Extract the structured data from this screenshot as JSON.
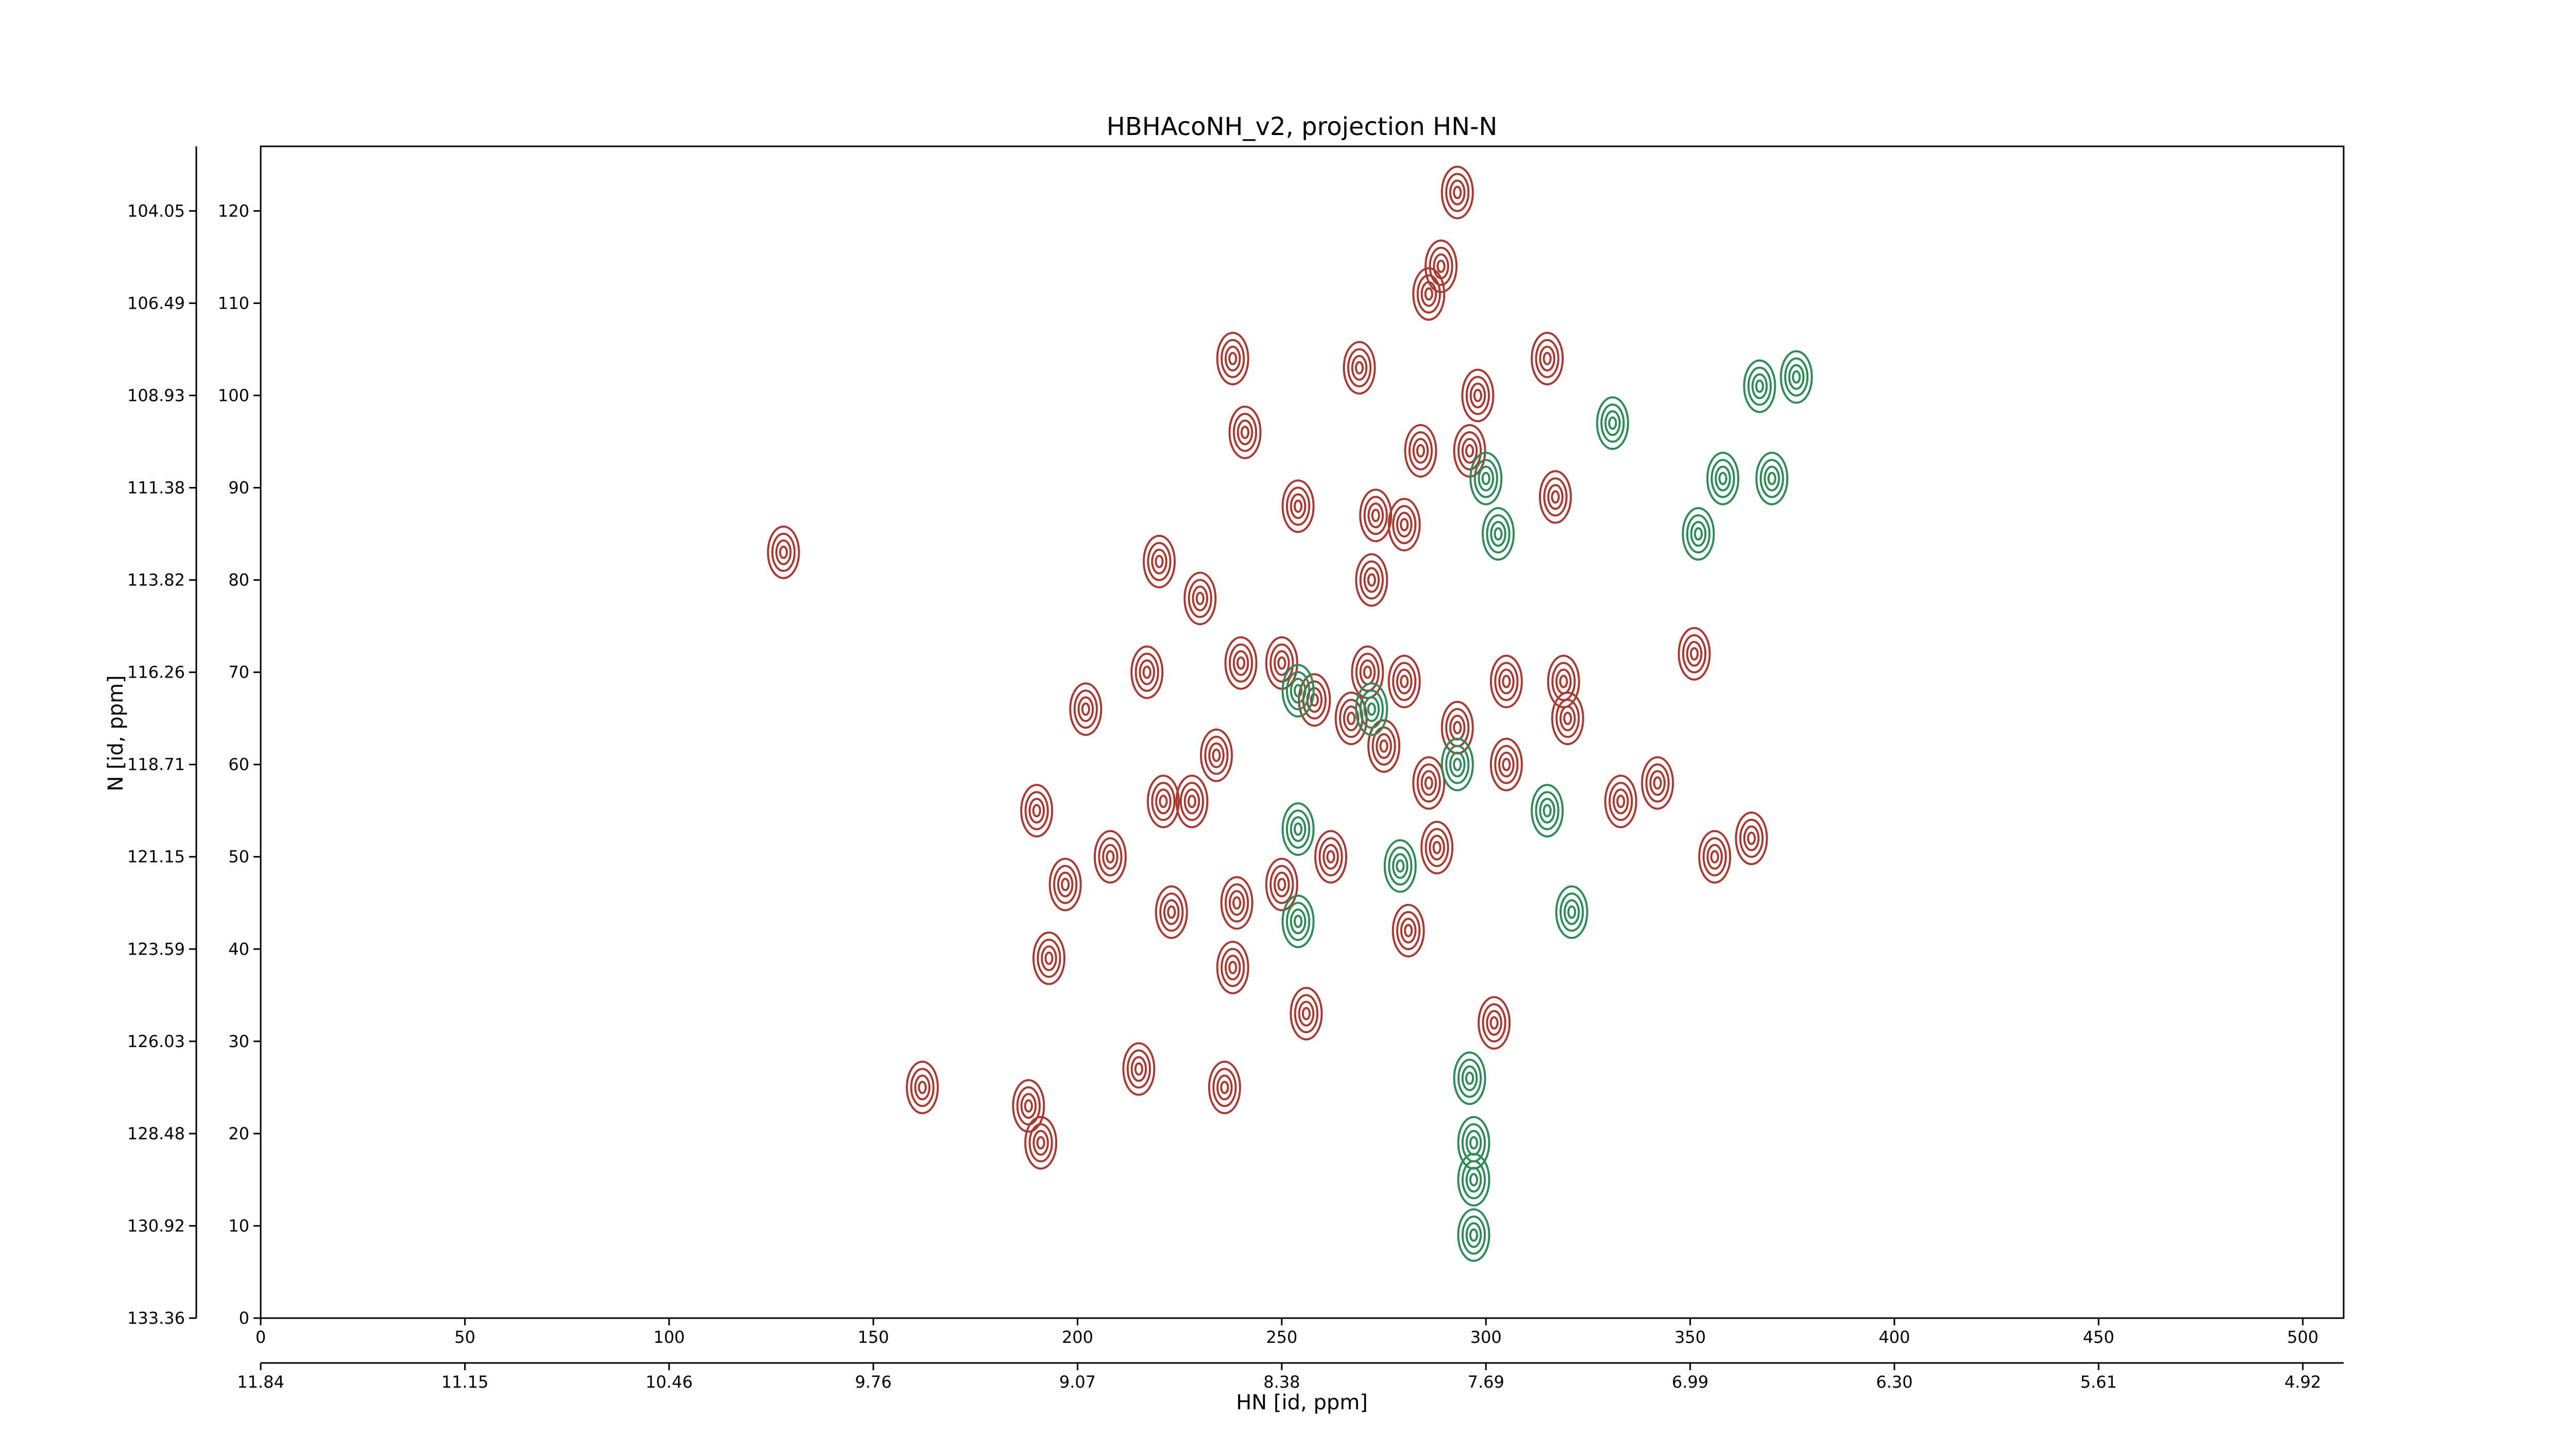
{
  "chart_data": {
    "type": "contour",
    "title": "HBHAcoNH_v2, projection HN-N",
    "xlabel": "HN [id, ppm]",
    "ylabel": "N [id, ppm]",
    "xlim": [
      0,
      510
    ],
    "xticks": [
      0,
      50,
      100,
      150,
      200,
      250,
      300,
      350,
      400,
      450,
      500
    ],
    "ylim": [
      0,
      127
    ],
    "yticks": [
      0,
      10,
      20,
      30,
      40,
      50,
      60,
      70,
      80,
      90,
      100,
      110,
      120
    ],
    "x2lim": [
      0,
      510
    ],
    "x2ticks": [
      {
        "value": 0,
        "label": "11.84"
      },
      {
        "value": 50,
        "label": "11.15"
      },
      {
        "value": 100,
        "label": "10.46"
      },
      {
        "value": 150,
        "label": "9.76"
      },
      {
        "value": 200,
        "label": "9.07"
      },
      {
        "value": 250,
        "label": "8.38"
      },
      {
        "value": 300,
        "label": "7.69"
      },
      {
        "value": 350,
        "label": "6.99"
      },
      {
        "value": 400,
        "label": "6.30"
      },
      {
        "value": 450,
        "label": "5.61"
      },
      {
        "value": 500,
        "label": "4.92"
      }
    ],
    "y2lim": [
      0,
      127
    ],
    "y2ticks": [
      {
        "value": 0,
        "label": "133.36"
      },
      {
        "value": 10,
        "label": "130.92"
      },
      {
        "value": 20,
        "label": "128.48"
      },
      {
        "value": 30,
        "label": "126.03"
      },
      {
        "value": 40,
        "label": "123.59"
      },
      {
        "value": 50,
        "label": "121.15"
      },
      {
        "value": 60,
        "label": "118.71"
      },
      {
        "value": 70,
        "label": "116.26"
      },
      {
        "value": 80,
        "label": "113.82"
      },
      {
        "value": 90,
        "label": "111.38"
      },
      {
        "value": 100,
        "label": "108.93"
      },
      {
        "value": 110,
        "label": "106.49"
      },
      {
        "value": 120,
        "label": "104.05"
      }
    ],
    "series": [
      {
        "color": "#a83a32",
        "x": [
          128,
          190,
          197,
          193,
          208,
          202,
          217,
          220,
          230,
          238,
          241,
          254,
          269,
          273,
          280,
          284,
          272,
          289,
          286,
          293,
          296,
          298,
          315,
          317,
          305,
          319,
          320,
          333,
          342,
          351,
          356,
          365,
          221,
          228,
          234,
          240,
          250,
          258,
          271,
          267,
          275,
          280,
          286,
          288,
          293,
          305,
          250,
          239,
          223,
          238,
          256,
          302,
          281,
          215,
          236,
          162,
          188,
          191,
          262
        ],
        "values": [
          83,
          55,
          47,
          39,
          50,
          66,
          70,
          82,
          78,
          104,
          96,
          88,
          103,
          87,
          86,
          94,
          80,
          114,
          111,
          122,
          94,
          100,
          104,
          89,
          69,
          69,
          65,
          56,
          58,
          72,
          50,
          52,
          56,
          56,
          61,
          71,
          71,
          67,
          70,
          65,
          62,
          69,
          58,
          51,
          64,
          60,
          47,
          45,
          44,
          38,
          33,
          32,
          42,
          27,
          25,
          25,
          23,
          19,
          50
        ]
      },
      {
        "color": "#2e8b57",
        "x": [
          296,
          297,
          293,
          279,
          254,
          254,
          272,
          254,
          331,
          367,
          376,
          358,
          352,
          370,
          321,
          315,
          297,
          297,
          303,
          300
        ],
        "values": [
          26,
          19,
          60,
          49,
          53,
          43,
          66,
          68,
          97,
          101,
          102,
          91,
          85,
          91,
          44,
          55,
          15,
          9,
          85,
          91
        ]
      }
    ]
  }
}
